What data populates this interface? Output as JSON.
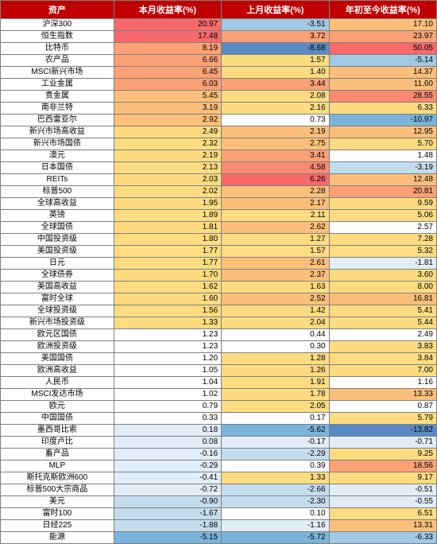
{
  "header": {
    "col0": "资产",
    "col1": "本月收益率(%)",
    "col2": "上月收益率(%)",
    "col3": "年初至今收益率(%)"
  },
  "colors": {
    "r5": "#f8696b",
    "r4": "#f98a71",
    "r3": "#fba176",
    "r2": "#fcbf7b",
    "r1": "#fddc81",
    "n0": "#ffffff",
    "b1": "#e1edf7",
    "b2": "#c4ddee",
    "b3": "#9fc9e4",
    "b4": "#7bb4da",
    "b5": "#5a8ac6"
  },
  "rows": [
    {
      "asset": "沪深300",
      "m": "20.97",
      "mC": "r5",
      "p": "-3.51",
      "pC": "b3",
      "y": "17.10",
      "yC": "r2"
    },
    {
      "asset": "恒生指数",
      "m": "17.48",
      "mC": "r5",
      "p": "3.72",
      "pC": "r3",
      "y": "23.97",
      "yC": "r3"
    },
    {
      "asset": "比特币",
      "m": "8.19",
      "mC": "r3",
      "p": "-8.68",
      "pC": "b5",
      "y": "50.05",
      "yC": "r5"
    },
    {
      "asset": "农产品",
      "m": "6.66",
      "mC": "r3",
      "p": "1.57",
      "pC": "r1",
      "y": "-5.14",
      "yC": "b3"
    },
    {
      "asset": "MSCI新兴市场",
      "m": "6.45",
      "mC": "r3",
      "p": "1.40",
      "pC": "r1",
      "y": "14.37",
      "yC": "r2"
    },
    {
      "asset": "工业金属",
      "m": "6.03",
      "mC": "r3",
      "p": "3.44",
      "pC": "r3",
      "y": "11.60",
      "yC": "r2"
    },
    {
      "asset": "贵金属",
      "m": "5.45",
      "mC": "r2",
      "p": "2.08",
      "pC": "r1",
      "y": "28.55",
      "yC": "r4"
    },
    {
      "asset": "南非兰特",
      "m": "3.19",
      "mC": "r2",
      "p": "2.16",
      "pC": "r1",
      "y": "6.33",
      "yC": "r1"
    },
    {
      "asset": "巴西雷亚尔",
      "m": "2.92",
      "mC": "r2",
      "p": "0.73",
      "pC": "n0",
      "y": "-10.97",
      "yC": "b4"
    },
    {
      "asset": "新兴市场高收益",
      "m": "2.49",
      "mC": "r1",
      "p": "2.19",
      "pC": "r2",
      "y": "12.95",
      "yC": "r2"
    },
    {
      "asset": "新兴市场国债",
      "m": "2.32",
      "mC": "r1",
      "p": "2.75",
      "pC": "r2",
      "y": "5.70",
      "yC": "r1"
    },
    {
      "asset": "澳元",
      "m": "2.19",
      "mC": "r1",
      "p": "3.41",
      "pC": "r3",
      "y": "1.48",
      "yC": "n0"
    },
    {
      "asset": "日本国债",
      "m": "2.13",
      "mC": "r1",
      "p": "4.58",
      "pC": "r4",
      "y": "-3.19",
      "yC": "b2"
    },
    {
      "asset": "REITs",
      "m": "2.03",
      "mC": "r1",
      "p": "6.26",
      "pC": "r5",
      "y": "12.48",
      "yC": "r2"
    },
    {
      "asset": "标普500",
      "m": "2.02",
      "mC": "r1",
      "p": "2.28",
      "pC": "r2",
      "y": "20.81",
      "yC": "r3"
    },
    {
      "asset": "全球高收益",
      "m": "1.95",
      "mC": "r1",
      "p": "2.17",
      "pC": "r2",
      "y": "9.59",
      "yC": "r1"
    },
    {
      "asset": "英镑",
      "m": "1.89",
      "mC": "r1",
      "p": "2.11",
      "pC": "r1",
      "y": "5.06",
      "yC": "r1"
    },
    {
      "asset": "全球国债",
      "m": "1.81",
      "mC": "r1",
      "p": "2.62",
      "pC": "r2",
      "y": "2.57",
      "yC": "n0"
    },
    {
      "asset": "中国投资级",
      "m": "1.80",
      "mC": "r1",
      "p": "1.27",
      "pC": "r1",
      "y": "7.28",
      "yC": "r1"
    },
    {
      "asset": "美国投资级",
      "m": "1.77",
      "mC": "r1",
      "p": "1.57",
      "pC": "r1",
      "y": "5.32",
      "yC": "r1"
    },
    {
      "asset": "日元",
      "m": "1.77",
      "mC": "r1",
      "p": "2.61",
      "pC": "r2",
      "y": "-1.81",
      "yC": "b1"
    },
    {
      "asset": "全球债券",
      "m": "1.70",
      "mC": "r1",
      "p": "2.37",
      "pC": "r2",
      "y": "3.60",
      "yC": "r1"
    },
    {
      "asset": "美国高收益",
      "m": "1.62",
      "mC": "r1",
      "p": "1.63",
      "pC": "r1",
      "y": "8.00",
      "yC": "r1"
    },
    {
      "asset": "富时全球",
      "m": "1.60",
      "mC": "r1",
      "p": "2.52",
      "pC": "r2",
      "y": "16.81",
      "yC": "r2"
    },
    {
      "asset": "全球投资级",
      "m": "1.56",
      "mC": "r1",
      "p": "1.42",
      "pC": "r1",
      "y": "5.41",
      "yC": "r1"
    },
    {
      "asset": "新兴市场投资级",
      "m": "1.33",
      "mC": "r1",
      "p": "2.04",
      "pC": "r1",
      "y": "5.44",
      "yC": "r1"
    },
    {
      "asset": "欧元区国债",
      "m": "1.23",
      "mC": "n0",
      "p": "0.44",
      "pC": "n0",
      "y": "2.49",
      "yC": "n0"
    },
    {
      "asset": "欧洲投资级",
      "m": "1.23",
      "mC": "n0",
      "p": "0.30",
      "pC": "n0",
      "y": "3.83",
      "yC": "r1"
    },
    {
      "asset": "美国国债",
      "m": "1.20",
      "mC": "n0",
      "p": "1.28",
      "pC": "r1",
      "y": "3.84",
      "yC": "r1"
    },
    {
      "asset": "欧洲高收益",
      "m": "1.05",
      "mC": "n0",
      "p": "1.26",
      "pC": "r1",
      "y": "7.00",
      "yC": "r1"
    },
    {
      "asset": "人民币",
      "m": "1.04",
      "mC": "n0",
      "p": "1.91",
      "pC": "r1",
      "y": "1.16",
      "yC": "n0"
    },
    {
      "asset": "MSCI发达市场",
      "m": "1.02",
      "mC": "n0",
      "p": "1.78",
      "pC": "r1",
      "y": "13.33",
      "yC": "r2"
    },
    {
      "asset": "欧元",
      "m": "0.79",
      "mC": "n0",
      "p": "2.05",
      "pC": "r1",
      "y": "0.87",
      "yC": "n0"
    },
    {
      "asset": "中国国债",
      "m": "0.33",
      "mC": "n0",
      "p": "0.17",
      "pC": "n0",
      "y": "5.79",
      "yC": "r1"
    },
    {
      "asset": "墨西哥比索",
      "m": "0.18",
      "mC": "b1",
      "p": "-5.62",
      "pC": "b4",
      "y": "-13.82",
      "yC": "b5"
    },
    {
      "asset": "印度卢比",
      "m": "0.08",
      "mC": "b1",
      "p": "-0.17",
      "pC": "b1",
      "y": "-0.71",
      "yC": "b1"
    },
    {
      "asset": "畜产品",
      "m": "-0.16",
      "mC": "b1",
      "p": "-2.29",
      "pC": "b2",
      "y": "9.25",
      "yC": "r1"
    },
    {
      "asset": "MLP",
      "m": "-0.29",
      "mC": "b1",
      "p": "0.39",
      "pC": "n0",
      "y": "18.56",
      "yC": "r3"
    },
    {
      "asset": "斯托克斯欧洲600",
      "m": "-0.41",
      "mC": "b1",
      "p": "1.33",
      "pC": "r1",
      "y": "9.17",
      "yC": "r1"
    },
    {
      "asset": "标普500大宗商品",
      "m": "-0.72",
      "mC": "b1",
      "p": "-2.66",
      "pC": "b2",
      "y": "-0.51",
      "yC": "b1"
    },
    {
      "asset": "美元",
      "m": "-0.90",
      "mC": "b2",
      "p": "-2.30",
      "pC": "b2",
      "y": "-0.55",
      "yC": "b1"
    },
    {
      "asset": "富时100",
      "m": "-1.67",
      "mC": "b2",
      "p": "0.10",
      "pC": "n0",
      "y": "6.51",
      "yC": "r1"
    },
    {
      "asset": "日经225",
      "m": "-1.88",
      "mC": "b2",
      "p": "-1.16",
      "pC": "b1",
      "y": "13.31",
      "yC": "r2"
    },
    {
      "asset": "能源",
      "m": "-5.15",
      "mC": "b4",
      "p": "-5.72",
      "pC": "b4",
      "y": "-6.33",
      "yC": "b3"
    }
  ]
}
